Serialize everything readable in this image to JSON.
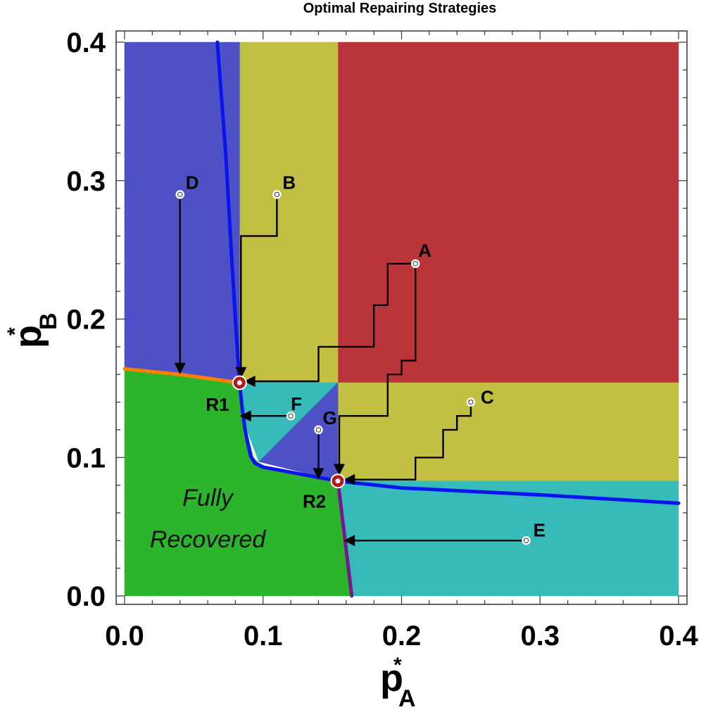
{
  "chart_data": {
    "type": "heatmap",
    "title": "Optimal Repairing Strategies",
    "xlabel": {
      "main": "p",
      "sup": "*",
      "sub": "A"
    },
    "ylabel": {
      "main": "p",
      "sup": "*",
      "sub": "B"
    },
    "xlim": [
      0,
      0.4
    ],
    "ylim": [
      0,
      0.4
    ],
    "xticks": [
      "0.0",
      "0.1",
      "0.2",
      "0.3",
      "0.4"
    ],
    "yticks": [
      "0.0",
      "0.1",
      "0.2",
      "0.3",
      "0.4"
    ],
    "tick_values": [
      0,
      0.1,
      0.2,
      0.3,
      0.4
    ],
    "minor_tick_step": 0.02,
    "grid": false,
    "colors": {
      "red": "#b93539",
      "olive": "#c1c042",
      "blue": "#4e51c6",
      "cyan": "#37baba",
      "green": "#2cb52c",
      "boundary_blue": "#0a14ef",
      "boundary_orange": "#ff8000",
      "boundary_purple": "#7a1590",
      "target": "#b01c1c",
      "path": "#000000"
    },
    "regions": [
      {
        "name": "red",
        "color": "#b93539",
        "polygon": [
          [
            0.154,
            0.154
          ],
          [
            0.4,
            0.154
          ],
          [
            0.4,
            0.4
          ],
          [
            0.154,
            0.4
          ]
        ]
      },
      {
        "name": "olive-top",
        "color": "#c1c042",
        "polygon": [
          [
            0.083,
            0.154
          ],
          [
            0.154,
            0.154
          ],
          [
            0.154,
            0.4
          ],
          [
            0.083,
            0.4
          ]
        ]
      },
      {
        "name": "olive-right",
        "color": "#c1c042",
        "polygon": [
          [
            0.154,
            0.083
          ],
          [
            0.4,
            0.083
          ],
          [
            0.4,
            0.154
          ],
          [
            0.154,
            0.154
          ]
        ]
      },
      {
        "name": "blue-left",
        "color": "#4e51c6",
        "polygon": [
          [
            0,
            0.164
          ],
          [
            0.083,
            0.154
          ],
          [
            0.083,
            0.4
          ],
          [
            0,
            0.4
          ]
        ]
      },
      {
        "name": "cyan-upper",
        "color": "#37baba",
        "polygon": [
          [
            0.083,
            0.154
          ],
          [
            0.154,
            0.154
          ],
          [
            0.097,
            0.097
          ],
          [
            0.086,
            0.126
          ]
        ]
      },
      {
        "name": "blue-triangle",
        "color": "#4e51c6",
        "polygon": [
          [
            0.154,
            0.154
          ],
          [
            0.154,
            0.083
          ],
          [
            0.097,
            0.097
          ]
        ]
      },
      {
        "name": "cyan-lower",
        "color": "#37baba",
        "polygon": [
          [
            0.154,
            0.083
          ],
          [
            0.4,
            0.083
          ],
          [
            0.4,
            0
          ],
          [
            0.164,
            0
          ]
        ]
      },
      {
        "name": "green",
        "color": "#2cb52c",
        "polygon": [
          [
            0,
            0
          ],
          [
            0.164,
            0
          ],
          [
            0.154,
            0.083
          ],
          [
            0.105,
            0.092
          ],
          [
            0.097,
            0.096
          ],
          [
            0.093,
            0.1
          ],
          [
            0.088,
            0.12
          ],
          [
            0.083,
            0.154
          ],
          [
            0,
            0.164
          ]
        ]
      }
    ],
    "boundaries": [
      {
        "color": "#0a14ef",
        "points": [
          [
            0.067,
            0.4
          ],
          [
            0.073,
            0.32
          ],
          [
            0.077,
            0.25
          ],
          [
            0.08,
            0.2
          ],
          [
            0.083,
            0.154
          ],
          [
            0.085,
            0.135
          ],
          [
            0.087,
            0.12
          ],
          [
            0.089,
            0.11
          ],
          [
            0.091,
            0.101
          ],
          [
            0.094,
            0.096
          ],
          [
            0.1,
            0.093
          ],
          [
            0.154,
            0.083
          ],
          [
            0.2,
            0.078
          ],
          [
            0.3,
            0.073
          ],
          [
            0.4,
            0.067
          ]
        ]
      },
      {
        "color": "#ff8000",
        "points": [
          [
            0,
            0.164
          ],
          [
            0.04,
            0.16
          ],
          [
            0.083,
            0.154
          ]
        ]
      },
      {
        "color": "#7a1590",
        "points": [
          [
            0.154,
            0.083
          ],
          [
            0.158,
            0.05
          ],
          [
            0.164,
            0
          ]
        ]
      }
    ],
    "fixed_points": [
      {
        "label": "R1",
        "x": 0.083,
        "y": 0.154
      },
      {
        "label": "R2",
        "x": 0.154,
        "y": 0.083
      }
    ],
    "start_points": [
      {
        "label": "A",
        "x": 0.21,
        "y": 0.24
      },
      {
        "label": "B",
        "x": 0.11,
        "y": 0.29
      },
      {
        "label": "C",
        "x": 0.25,
        "y": 0.14
      },
      {
        "label": "D",
        "x": 0.04,
        "y": 0.29
      },
      {
        "label": "E",
        "x": 0.29,
        "y": 0.04
      },
      {
        "label": "F",
        "x": 0.12,
        "y": 0.13
      },
      {
        "label": "G",
        "x": 0.14,
        "y": 0.12
      }
    ],
    "paths": [
      {
        "from": "A",
        "to": "R1",
        "points": [
          [
            0.21,
            0.24
          ],
          [
            0.19,
            0.24
          ],
          [
            0.19,
            0.21
          ],
          [
            0.18,
            0.21
          ],
          [
            0.18,
            0.18
          ],
          [
            0.14,
            0.18
          ],
          [
            0.14,
            0.155
          ],
          [
            0.087,
            0.155
          ]
        ]
      },
      {
        "from": "A",
        "to": "R2",
        "points": [
          [
            0.21,
            0.24
          ],
          [
            0.21,
            0.17
          ],
          [
            0.2,
            0.17
          ],
          [
            0.2,
            0.16
          ],
          [
            0.19,
            0.16
          ],
          [
            0.19,
            0.13
          ],
          [
            0.155,
            0.13
          ],
          [
            0.155,
            0.088
          ]
        ]
      },
      {
        "from": "B",
        "to": "R1",
        "points": [
          [
            0.11,
            0.29
          ],
          [
            0.11,
            0.26
          ],
          [
            0.084,
            0.26
          ],
          [
            0.084,
            0.158
          ]
        ]
      },
      {
        "from": "C",
        "to": "R2",
        "points": [
          [
            0.25,
            0.14
          ],
          [
            0.25,
            0.13
          ],
          [
            0.24,
            0.13
          ],
          [
            0.24,
            0.12
          ],
          [
            0.23,
            0.12
          ],
          [
            0.23,
            0.1
          ],
          [
            0.21,
            0.1
          ],
          [
            0.21,
            0.084
          ],
          [
            0.159,
            0.084
          ]
        ]
      },
      {
        "from": "D",
        "to": "orange-boundary",
        "points": [
          [
            0.04,
            0.29
          ],
          [
            0.04,
            0.161
          ]
        ]
      },
      {
        "from": "E",
        "to": "purple-boundary",
        "points": [
          [
            0.29,
            0.04
          ],
          [
            0.159,
            0.04
          ]
        ]
      },
      {
        "from": "F",
        "to": "blue-boundary",
        "points": [
          [
            0.12,
            0.13
          ],
          [
            0.084,
            0.13
          ]
        ]
      },
      {
        "from": "G",
        "to": "blue-boundary",
        "points": [
          [
            0.14,
            0.12
          ],
          [
            0.14,
            0.085
          ]
        ]
      }
    ],
    "annotations": [
      {
        "text": "Fully",
        "x": 0.06,
        "y": 0.065
      },
      {
        "text": "Recovered",
        "x": 0.06,
        "y": 0.035
      }
    ]
  }
}
